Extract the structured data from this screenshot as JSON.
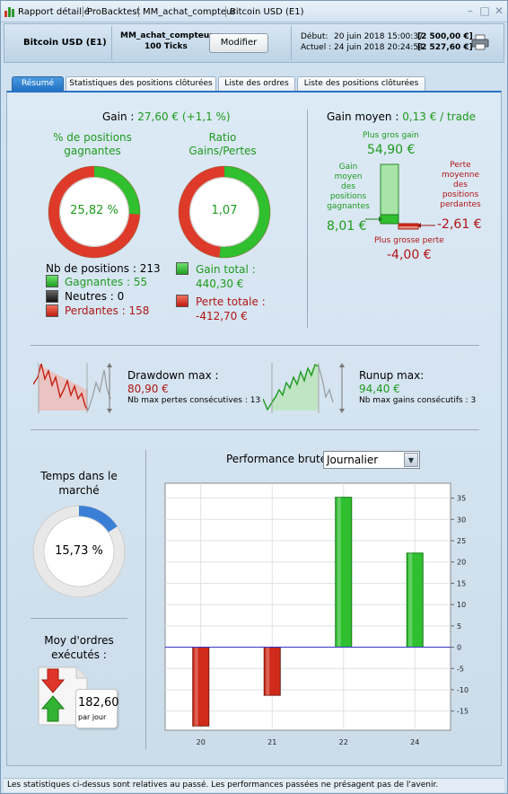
{
  "titlebar": {
    "items": [
      "Rapport détaillé",
      "ProBacktest",
      "MM_achat_compteur",
      "Bitcoin USD (E1)"
    ],
    "controls": {
      "minimize": "–",
      "maximize": "□",
      "close": "✕"
    }
  },
  "header": {
    "instrument": "Bitcoin USD (E1)",
    "strategy": "MM_achat_compteur",
    "ticks": "100 Ticks",
    "modify_label": "Modifier",
    "start_label": "Début:",
    "start_date": "20 juin 2018 15:00:37",
    "start_capital": "[2 500,00 €]",
    "current_label": "Actuel :",
    "current_date": "24 juin 2018 20:24:54",
    "current_capital": "[2 527,60 €]"
  },
  "tabs": [
    {
      "label": "Résumé",
      "active": true
    },
    {
      "label": "Statistiques des positions clôturées",
      "active": false
    },
    {
      "label": "Liste des ordres",
      "active": false
    },
    {
      "label": "Liste des positions clôturées",
      "active": false
    }
  ],
  "summary": {
    "gain_label": "Gain : ",
    "gain_value": "27,60 € (+1,1 %)",
    "winning_label_1": "% de positions",
    "winning_label_2": "gagnantes",
    "winning_pct": "25,82 %",
    "winning_fraction": 0.2582,
    "ratio_label_1": "Ratio",
    "ratio_label_2": "Gains/Pertes",
    "ratio_value": "1,07",
    "ratio_fraction": 0.5169,
    "nb_positions_label": "Nb de positions : ",
    "nb_positions": "213",
    "winners_label": "Gagnantes : ",
    "winners": "55",
    "neutral_label": "Neutres : ",
    "neutral": "0",
    "losers_label": "Perdantes : ",
    "losers": "158",
    "total_gain_label": "Gain total :",
    "total_gain": "440,30 €",
    "total_loss_label": "Perte totale :",
    "total_loss": "-412,70 €"
  },
  "avg_gain": {
    "label": "Gain moyen : ",
    "value": "0,13 € / trade",
    "biggest_gain_label": "Plus gros gain",
    "biggest_gain": "54,90 €",
    "avg_winner_label": [
      "Gain",
      "moyen",
      "des",
      "positions",
      "gagnantes"
    ],
    "avg_winner": "8,01 €",
    "avg_loser_label": [
      "Perte",
      "moyenne",
      "des",
      "positions",
      "perdantes"
    ],
    "avg_loser": "-2,61 €",
    "biggest_loss_label": "Plus grosse perte",
    "biggest_loss": "-4,00 €"
  },
  "drawdown": {
    "label": "Drawdown max :",
    "value": "80,90 €",
    "consecutive_label": "Nb max pertes consécutives : ",
    "consecutive": "13"
  },
  "runup": {
    "label": "Runup max:",
    "value": "94,40 €",
    "consecutive_label": "Nb max gains consécutifs : ",
    "consecutive": "3"
  },
  "market_time": {
    "label_1": "Temps dans le",
    "label_2": "marché",
    "value": "15,73 %",
    "fraction": 0.1573
  },
  "orders": {
    "label_1": "Moy d'ordres",
    "label_2": "exécutés :",
    "value": "182,60",
    "unit": "par jour"
  },
  "performance": {
    "label": "Performance brute",
    "period": "Journalier"
  },
  "chart_data": {
    "type": "bar",
    "categories": [
      "20",
      "21",
      "22",
      "24"
    ],
    "values": [
      -18.5,
      -11.3,
      35.2,
      22.1
    ],
    "ylim": [
      -19.5,
      38.5
    ],
    "yticks": [
      35,
      30,
      25,
      20,
      15,
      10,
      5,
      0,
      -5,
      -10,
      -15
    ],
    "colors": {
      "positive": "#2fbf2f",
      "negative": "#cf2a1a",
      "zero_line": "#3535c8"
    },
    "grid": true
  },
  "footer": {
    "text": "Les statistiques ci-dessus sont relatives au passé. Les performances passées ne présagent pas de l'avenir."
  }
}
